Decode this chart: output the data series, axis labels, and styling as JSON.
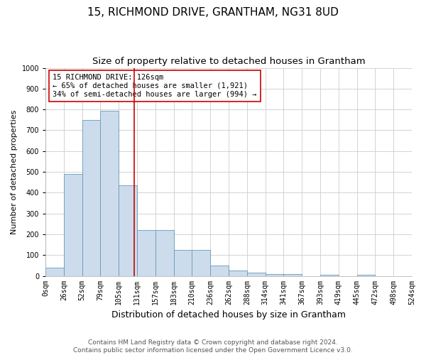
{
  "title": "15, RICHMOND DRIVE, GRANTHAM, NG31 8UD",
  "subtitle": "Size of property relative to detached houses in Grantham",
  "xlabel": "Distribution of detached houses by size in Grantham",
  "ylabel": "Number of detached properties",
  "bar_values": [
    40,
    490,
    750,
    795,
    435,
    220,
    220,
    125,
    125,
    50,
    25,
    15,
    10,
    10,
    0,
    5,
    0,
    5,
    0,
    0
  ],
  "bin_labels": [
    "0sqm",
    "26sqm",
    "52sqm",
    "79sqm",
    "105sqm",
    "131sqm",
    "157sqm",
    "183sqm",
    "210sqm",
    "236sqm",
    "262sqm",
    "288sqm",
    "314sqm",
    "341sqm",
    "367sqm",
    "393sqm",
    "419sqm",
    "445sqm",
    "472sqm",
    "498sqm",
    "524sqm"
  ],
  "bar_color": "#ccdcec",
  "bar_edge_color": "#6699bb",
  "marker_line_color": "#cc0000",
  "marker_bin_index": 4,
  "annotation_text": "15 RICHMOND DRIVE: 126sqm\n← 65% of detached houses are smaller (1,921)\n34% of semi-detached houses are larger (994) →",
  "annotation_box_color": "#ffffff",
  "annotation_box_edge": "#cc0000",
  "ylim": [
    0,
    1000
  ],
  "yticks": [
    0,
    100,
    200,
    300,
    400,
    500,
    600,
    700,
    800,
    900,
    1000
  ],
  "footer_line1": "Contains HM Land Registry data © Crown copyright and database right 2024.",
  "footer_line2": "Contains public sector information licensed under the Open Government Licence v3.0.",
  "title_fontsize": 11,
  "subtitle_fontsize": 9.5,
  "xlabel_fontsize": 9,
  "ylabel_fontsize": 8,
  "tick_fontsize": 7,
  "annotation_fontsize": 7.5,
  "footer_fontsize": 6.5
}
